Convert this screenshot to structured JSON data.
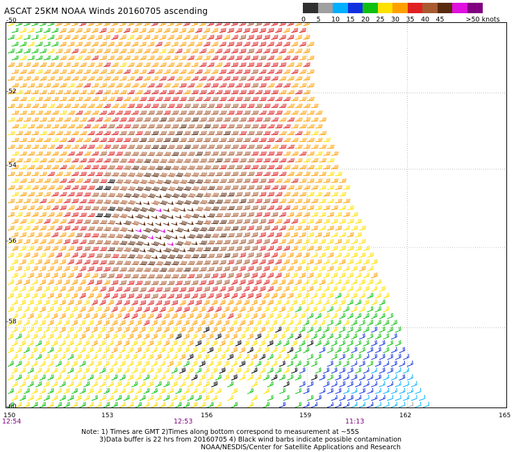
{
  "title": "ASCAT 25KM NOAA Winds 20160705 ascending",
  "legend": {
    "entries": [
      {
        "label": "0",
        "color": "#303030"
      },
      {
        "label": "5",
        "color": "#a0a0a0"
      },
      {
        "label": "10",
        "color": "#00b0ff"
      },
      {
        "label": "15",
        "color": "#1030e0"
      },
      {
        "label": "20",
        "color": "#10c010"
      },
      {
        "label": "25",
        "color": "#ffe000"
      },
      {
        "label": "30",
        "color": "#ffa000"
      },
      {
        "label": "35",
        "color": "#e02020"
      },
      {
        "label": "40",
        "color": "#a85a30"
      },
      {
        "label": "45",
        "color": "#5a2a10"
      },
      {
        "label": "",
        "color": "#e010e0"
      },
      {
        "label": ">50 knots",
        "color": "#800080"
      }
    ]
  },
  "map": {
    "lon_range": [
      150,
      165
    ],
    "lat_range": [
      -50,
      -60
    ],
    "latitude_labels": [
      "-50",
      "-52",
      "-54",
      "-56",
      "-58",
      "-60"
    ],
    "longitude_labels": [
      "150",
      "153",
      "156",
      "159",
      "162",
      "165"
    ],
    "time_labels": [
      "12:54",
      "12:53",
      "11:13"
    ]
  },
  "notes": {
    "line1": "Note: 1) Times are GMT 2)Times along bottom correspond to measurement at ~55S",
    "line2": "3)Data buffer is 22 hrs from 20160705 4) Black wind barbs indicate possible contamination",
    "line3": "NOAA/NESDIS/Center for Satellite Applications and Research"
  }
}
